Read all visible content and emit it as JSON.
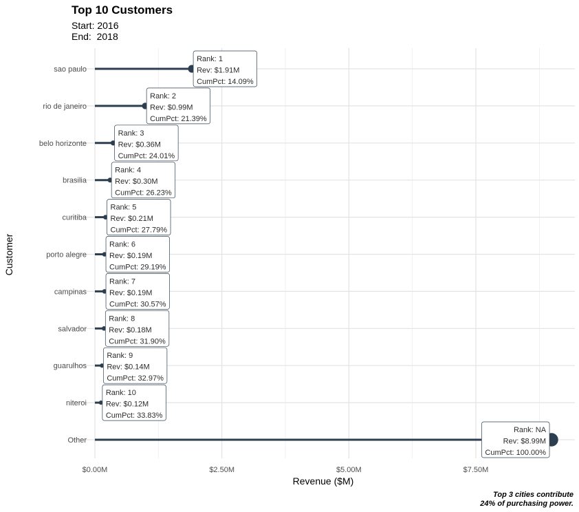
{
  "chart_data": {
    "type": "lollipop",
    "title": "Top 10 Customers",
    "subtitle_lines": [
      "Start: 2016",
      "End:  2018"
    ],
    "xlabel": "Revenue ($M)",
    "ylabel": "Customer",
    "caption_lines": [
      "Top 3 cities contribute",
      "24% of purchasing power."
    ],
    "xlim": [
      0,
      9
    ],
    "x_ticks": [
      {
        "value": 0,
        "label": "$0.00M"
      },
      {
        "value": 2.5,
        "label": "$2.50M"
      },
      {
        "value": 5.0,
        "label": "$5.00M"
      },
      {
        "value": 7.5,
        "label": "$7.50M"
      }
    ],
    "grid": true,
    "color": "#2c3e50",
    "rows": [
      {
        "customer": "sao paulo",
        "value": 1.91,
        "label_lines": [
          "Rank: 1",
          "Rev: $1.91M",
          "CumPct: 14.09%"
        ]
      },
      {
        "customer": "rio de janeiro",
        "value": 0.99,
        "label_lines": [
          "Rank: 2",
          "Rev: $0.99M",
          "CumPct: 21.39%"
        ]
      },
      {
        "customer": "belo horizonte",
        "value": 0.36,
        "label_lines": [
          "Rank: 3",
          "Rev: $0.36M",
          "CumPct: 24.01%"
        ]
      },
      {
        "customer": "brasilia",
        "value": 0.3,
        "label_lines": [
          "Rank: 4",
          "Rev: $0.30M",
          "CumPct: 26.23%"
        ]
      },
      {
        "customer": "curitiba",
        "value": 0.21,
        "label_lines": [
          "Rank: 5",
          "Rev: $0.21M",
          "CumPct: 27.79%"
        ]
      },
      {
        "customer": "porto alegre",
        "value": 0.19,
        "label_lines": [
          "Rank: 6",
          "Rev: $0.19M",
          "CumPct: 29.19%"
        ]
      },
      {
        "customer": "campinas",
        "value": 0.19,
        "label_lines": [
          "Rank: 7",
          "Rev: $0.19M",
          "CumPct: 30.57%"
        ]
      },
      {
        "customer": "salvador",
        "value": 0.18,
        "label_lines": [
          "Rank: 8",
          "Rev: $0.18M",
          "CumPct: 31.90%"
        ]
      },
      {
        "customer": "guarulhos",
        "value": 0.14,
        "label_lines": [
          "Rank: 9",
          "Rev: $0.14M",
          "CumPct: 32.97%"
        ]
      },
      {
        "customer": "niteroi",
        "value": 0.12,
        "label_lines": [
          "Rank: 10",
          "Rev: $0.12M",
          "CumPct: 33.83%"
        ]
      },
      {
        "customer": "Other",
        "value": 8.99,
        "label_lines": [
          "Rank: NA",
          "Rev: $8.99M",
          "CumPct: 100.00%"
        ]
      }
    ]
  }
}
